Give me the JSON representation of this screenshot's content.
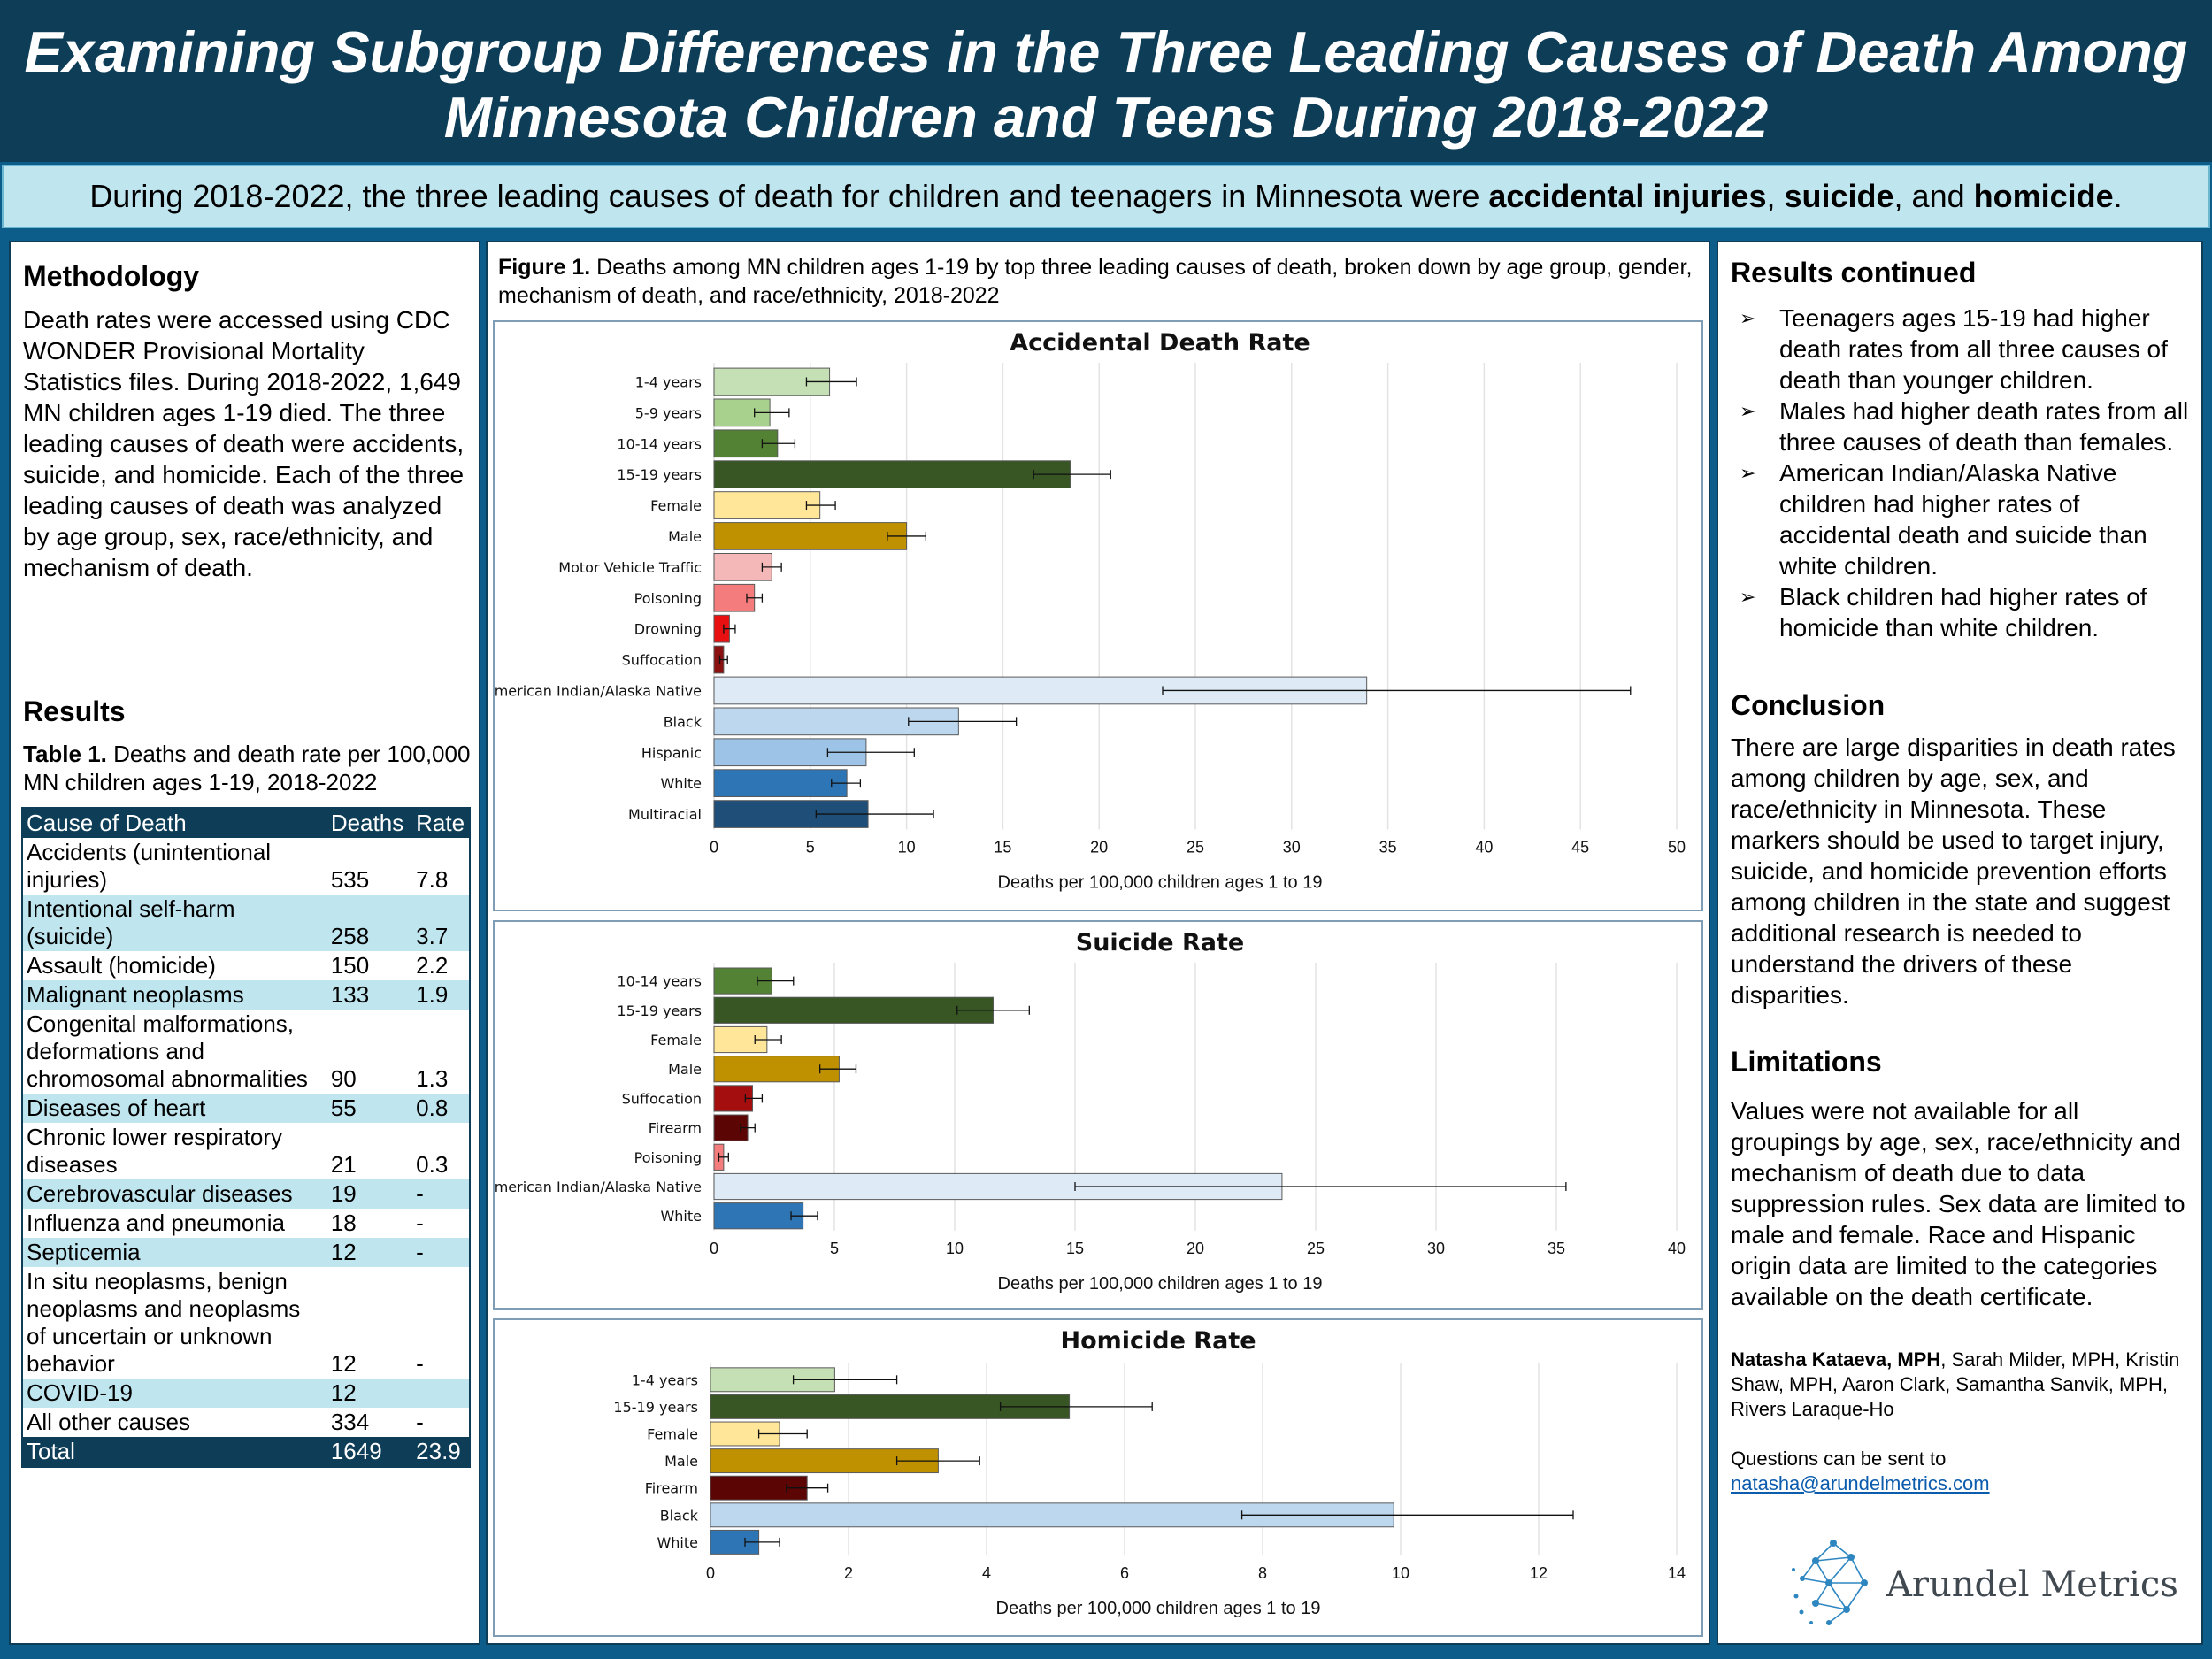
{
  "header": {
    "title_line1": "Examining Subgroup Differences in the Three Leading Causes of Death Among",
    "title_line2": "Minnesota Children and Teens During 2018-2022"
  },
  "subtitle": {
    "pre": "During 2018-2022, the three leading causes of death for children and teenagers in Minnesota were ",
    "b1": "accidental injuries",
    "sep1": ", ",
    "b2": "suicide",
    "sep2": ", and ",
    "b3": "homicide",
    "end": "."
  },
  "methodology": {
    "heading": "Methodology",
    "body": "Death rates were accessed using CDC WONDER Provisional Mortality Statistics files. During 2018-2022, 1,649 MN children ages 1-19 died. The three leading causes of death were accidents, suicide, and homicide. Each of the three leading causes of death was analyzed by age group, sex, race/ethnicity, and mechanism of death."
  },
  "results": {
    "heading": "Results",
    "table_caption_bold": "Table 1.",
    "table_caption": " Deaths and death rate per 100,000 MN children ages 1-19, 2018-2022",
    "columns": [
      "Cause of Death",
      "Deaths",
      "Rate"
    ],
    "rows": [
      {
        "cause": "Accidents (unintentional injuries)",
        "deaths": "535",
        "rate": "7.8"
      },
      {
        "cause": "Intentional self-harm (suicide)",
        "deaths": "258",
        "rate": "3.7"
      },
      {
        "cause": "Assault (homicide)",
        "deaths": "150",
        "rate": "2.2"
      },
      {
        "cause": "Malignant neoplasms",
        "deaths": "133",
        "rate": "1.9"
      },
      {
        "cause": "Congenital malformations, deformations and chromosomal abnormalities",
        "deaths": "90",
        "rate": "1.3"
      },
      {
        "cause": "Diseases of heart",
        "deaths": "55",
        "rate": "0.8"
      },
      {
        "cause": "Chronic lower respiratory diseases",
        "deaths": "21",
        "rate": "0.3"
      },
      {
        "cause": "Cerebrovascular diseases",
        "deaths": "19",
        "rate": "-"
      },
      {
        "cause": "Influenza and pneumonia",
        "deaths": "18",
        "rate": "-"
      },
      {
        "cause": "Septicemia",
        "deaths": "12",
        "rate": "-"
      },
      {
        "cause": "In situ neoplasms, benign neoplasms and neoplasms of uncertain or unknown behavior",
        "deaths": "12",
        "rate": "-"
      },
      {
        "cause": "COVID-19",
        "deaths": "12",
        "rate": ""
      },
      {
        "cause": "All other causes",
        "deaths": "334",
        "rate": "-"
      }
    ],
    "total": {
      "label": "Total",
      "deaths": "1649",
      "rate": "23.9"
    }
  },
  "figure": {
    "caption_bold": "Figure 1.",
    "caption": " Deaths among MN children ages 1-19 by top three leading causes of death, broken down by age group, gender, mechanism of death, and race/ethnicity, 2018-2022"
  },
  "chart_data": [
    {
      "type": "bar",
      "orientation": "horizontal",
      "title": "Accidental Death Rate",
      "xlabel": "Deaths per 100,000 children ages 1 to 19",
      "xlim": [
        0,
        50
      ],
      "xticks": [
        0,
        5,
        10,
        15,
        20,
        25,
        30,
        35,
        40,
        45,
        50
      ],
      "grid": true,
      "categories": [
        "1-4 years",
        "5-9 years",
        "10-14 years",
        "15-19 years",
        "Female",
        "Male",
        "Motor Vehicle Traffic",
        "Poisoning",
        "Drowning",
        "Suffocation",
        "American Indian/Alaska Native",
        "Black",
        "Hispanic",
        "White",
        "Multiracial"
      ],
      "values": [
        6.0,
        2.9,
        3.3,
        18.5,
        5.5,
        10.0,
        3.0,
        2.1,
        0.8,
        0.5,
        33.9,
        12.7,
        7.9,
        6.9,
        8.0
      ],
      "error_low": [
        4.8,
        2.1,
        2.5,
        16.6,
        4.8,
        9.0,
        2.5,
        1.7,
        0.5,
        0.3,
        23.3,
        10.1,
        5.9,
        6.1,
        5.3
      ],
      "error_high": [
        7.4,
        3.9,
        4.2,
        20.6,
        6.3,
        11.0,
        3.5,
        2.5,
        1.1,
        0.7,
        47.6,
        15.7,
        10.4,
        7.6,
        11.4
      ],
      "colors": [
        "#c5e0b4",
        "#a9d18e",
        "#548235",
        "#375623",
        "#ffe699",
        "#bf9000",
        "#f4b8b8",
        "#f47c7c",
        "#e81010",
        "#8b1010",
        "#deebf7",
        "#bdd7ee",
        "#9dc3e6",
        "#2e75b6",
        "#1f4e79"
      ]
    },
    {
      "type": "bar",
      "orientation": "horizontal",
      "title": "Suicide Rate",
      "xlabel": "Deaths per 100,000 children ages 1 to 19",
      "xlim": [
        0,
        40
      ],
      "xticks": [
        0,
        5,
        10,
        15,
        20,
        25,
        30,
        35,
        40
      ],
      "grid": true,
      "categories": [
        "10-14 years",
        "15-19 years",
        "Female",
        "Male",
        "Suffocation",
        "Firearm",
        "Poisoning",
        "American Indian/Alaska Native",
        "White"
      ],
      "values": [
        2.4,
        11.6,
        2.2,
        5.2,
        1.6,
        1.4,
        0.4,
        23.6,
        3.7
      ],
      "error_low": [
        1.8,
        10.1,
        1.7,
        4.4,
        1.3,
        1.1,
        0.2,
        15.0,
        3.2
      ],
      "error_high": [
        3.3,
        13.1,
        2.8,
        5.9,
        2.0,
        1.7,
        0.6,
        35.4,
        4.3
      ],
      "colors": [
        "#548235",
        "#375623",
        "#ffe699",
        "#bf9000",
        "#a50e0e",
        "#5c0505",
        "#f47c7c",
        "#deebf7",
        "#2e75b6"
      ]
    },
    {
      "type": "bar",
      "orientation": "horizontal",
      "title": "Homicide Rate",
      "xlabel": "Deaths per 100,000 children ages 1 to 19",
      "xlim": [
        0,
        14
      ],
      "xticks": [
        0,
        2,
        4,
        6,
        8,
        10,
        12,
        14
      ],
      "grid": true,
      "categories": [
        "1-4 years",
        "15-19 years",
        "Female",
        "Male",
        "Firearm",
        "Black",
        "White"
      ],
      "values": [
        1.8,
        5.2,
        1.0,
        3.3,
        1.4,
        9.9,
        0.7
      ],
      "error_low": [
        1.2,
        4.2,
        0.7,
        2.7,
        1.1,
        7.7,
        0.5
      ],
      "error_high": [
        2.7,
        6.4,
        1.4,
        3.9,
        1.7,
        12.5,
        1.0
      ],
      "colors": [
        "#c5e0b4",
        "#375623",
        "#ffe699",
        "#bf9000",
        "#5c0505",
        "#bdd7ee",
        "#2e75b6"
      ]
    }
  ],
  "results_continued": {
    "heading": "Results continued",
    "bullets": [
      "Teenagers ages 15-19 had higher death rates from all three causes of death than younger children.",
      "Males had higher death rates from all three causes of death than females.",
      "American Indian/Alaska Native children had higher rates of accidental death and suicide than white children.",
      "Black children had higher rates of homicide than white children."
    ],
    "bullet_glyph": "➢"
  },
  "conclusion": {
    "heading": "Conclusion",
    "body": "There are large disparities in death rates among children by age, sex, and race/ethnicity in Minnesota. These markers should be used to target injury, suicide, and homicide prevention efforts among children in the state and suggest additional research is needed to understand the drivers of these disparities."
  },
  "limitations": {
    "heading": "Limitations",
    "body": "Values were not available for all groupings by age, sex, race/ethnicity and mechanism of death due to data suppression rules. Sex data are limited to male and female. Race and Hispanic origin data are limited to the categories available on the death certificate."
  },
  "authors": {
    "lead": "Natasha Kataeva, MPH",
    "rest": ", Sarah Milder, MPH, Kristin Shaw, MPH, Aaron Clark, Samantha Sanvik, MPH, Rivers Laraque-Ho"
  },
  "contact": {
    "label": "Questions can be sent to",
    "email": "natasha@arundelmetrics.com"
  },
  "logo": {
    "text": "Arundel Metrics",
    "color": "#2e86c1"
  }
}
